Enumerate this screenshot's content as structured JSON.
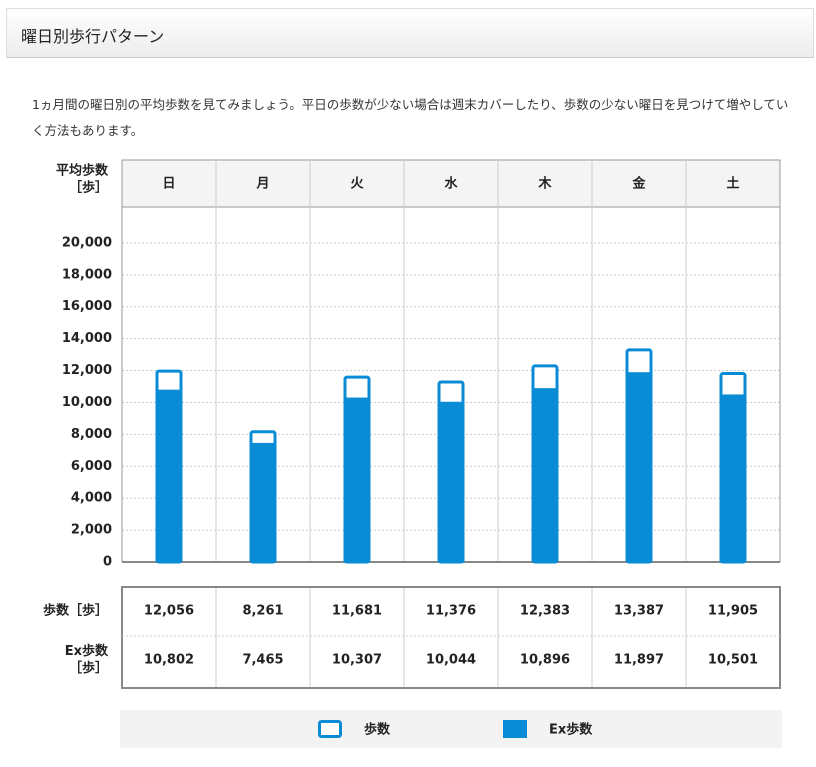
{
  "header": {
    "title": "曜日別歩行パターン"
  },
  "description": "1ヵ月間の曜日別の平均歩数を見てみましょう。平日の歩数が少ない場合は週末カバーしたり、歩数の少ない曜日を見つけて増やしていく方法もあります。",
  "chart_data": {
    "type": "bar",
    "y_label": [
      "平均歩数",
      "［歩］"
    ],
    "categories": [
      "日",
      "月",
      "火",
      "水",
      "木",
      "金",
      "土"
    ],
    "series": [
      {
        "name": "歩数",
        "color": "#0a8bd6",
        "values": [
          12056,
          8261,
          11681,
          11376,
          12383,
          13387,
          11905
        ],
        "value_labels": [
          "12,056",
          "8,261",
          "11,681",
          "11,376",
          "12,383",
          "13,387",
          "11,905"
        ]
      },
      {
        "name": "Ex歩数",
        "color": "#0a8bd6",
        "values": [
          10802,
          7465,
          10307,
          10044,
          10896,
          11897,
          10501
        ],
        "value_labels": [
          "10,802",
          "7,465",
          "10,307",
          "10,044",
          "10,896",
          "11,897",
          "10,501"
        ]
      }
    ],
    "row_labels": [
      [
        "歩数［歩］"
      ],
      [
        "Ex歩数",
        "［歩］"
      ]
    ],
    "ylim": [
      0,
      22000
    ],
    "yticks": [
      0,
      {
        "value": 2000,
        "label": "2,000"
      },
      {
        "value": 4000,
        "label": "4,000"
      },
      {
        "value": 6000,
        "label": "6,000"
      },
      {
        "value": 8000,
        "label": "8,000"
      },
      {
        "value": 10000,
        "label": "10,000"
      },
      {
        "value": 12000,
        "label": "12,000"
      },
      {
        "value": 14000,
        "label": "14,000"
      },
      {
        "value": 16000,
        "label": "16,000"
      },
      {
        "value": 18000,
        "label": "18,000"
      },
      {
        "value": 20000,
        "label": "20,000"
      }
    ],
    "grid": true
  }
}
